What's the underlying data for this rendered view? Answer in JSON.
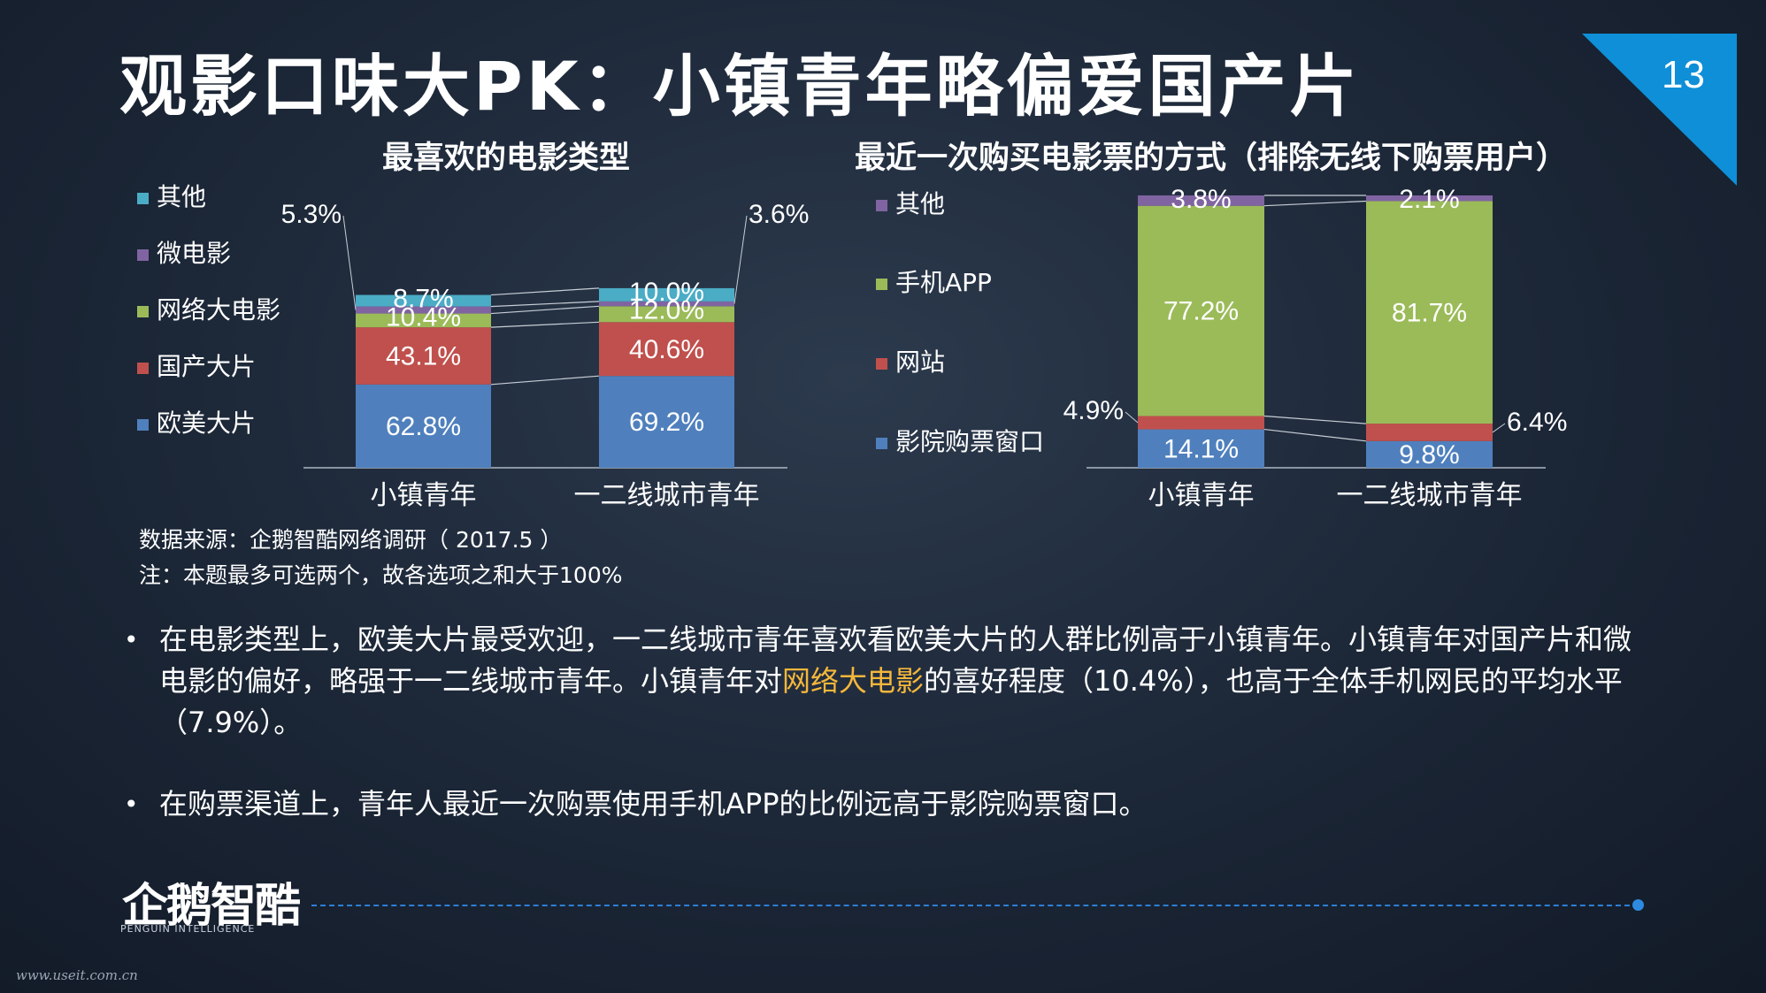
{
  "header": {
    "title": "观影口味大PK：小镇青年略偏爱国产片",
    "page_number": "13",
    "accent_color": "#0e8fd8"
  },
  "chart_data": [
    {
      "type": "bar",
      "stacked": true,
      "title": "最喜欢的电影类型",
      "categories": [
        "小镇青年",
        "一二线城市青年"
      ],
      "series": [
        {
          "name": "欧美大片",
          "color": "#4f80bd",
          "values": [
            62.8,
            69.2
          ],
          "labels": [
            "62.8%",
            "69.2%"
          ]
        },
        {
          "name": "国产大片",
          "color": "#c0504d",
          "values": [
            43.1,
            40.6
          ],
          "labels": [
            "43.1%",
            "40.6%"
          ]
        },
        {
          "name": "网络大电影",
          "color": "#9bbb59",
          "values": [
            10.4,
            12.0
          ],
          "labels": [
            "10.4%",
            "12.0%"
          ]
        },
        {
          "name": "微电影",
          "color": "#8064a2",
          "values": [
            5.3,
            3.6
          ],
          "labels": [
            "5.3%",
            "3.6%"
          ]
        },
        {
          "name": "其他",
          "color": "#4bacc6",
          "values": [
            8.7,
            10.0
          ],
          "labels": [
            "8.7%",
            "10.0%"
          ]
        }
      ],
      "legend_position": "left"
    },
    {
      "type": "bar",
      "stacked": true,
      "title": "最近一次购买电影票的方式（排除无线下购票用户）",
      "categories": [
        "小镇青年",
        "一二线城市青年"
      ],
      "series": [
        {
          "name": "影院购票窗口",
          "color": "#4f80bd",
          "values": [
            14.1,
            9.8
          ],
          "labels": [
            "14.1%",
            "9.8%"
          ]
        },
        {
          "name": "网站",
          "color": "#c0504d",
          "values": [
            4.9,
            6.4
          ],
          "labels": [
            "4.9%",
            "6.4%"
          ]
        },
        {
          "name": "手机APP",
          "color": "#9bbb59",
          "values": [
            77.2,
            81.7
          ],
          "labels": [
            "77.2%",
            "81.7%"
          ]
        },
        {
          "name": "其他",
          "color": "#8064a2",
          "values": [
            3.8,
            2.1
          ],
          "labels": [
            "3.8%",
            "2.1%"
          ]
        }
      ],
      "legend_position": "left"
    }
  ],
  "notes": {
    "source": "数据来源：企鹅智酷网络调研（ 2017.5 ）",
    "footnote": "注：本题最多可选两个，故各选项之和大于100%"
  },
  "bullets": [
    {
      "marker": "•",
      "part1": "在电影类型上，欧美大片最受欢迎，一二线城市青年喜欢看欧美大片的人群比例高于小镇青年。小镇青年对国产片和微电影的偏好，略强于一二线城市青年。小镇青年对",
      "highlight": "网络大电影",
      "part2": "的喜好程度（10.4%），也高于全体手机网民的平均水平（7.9%）。"
    },
    {
      "marker": "•",
      "part1": "在购票渠道上，青年人最近一次购票使用手机APP的比例远高于影院购票窗口。"
    }
  ],
  "footer": {
    "logo_text": "企鹅智酷",
    "logo_subtext": "PENGUIN INTELLIGENCE",
    "watermark": "www.useit.com.cn"
  }
}
